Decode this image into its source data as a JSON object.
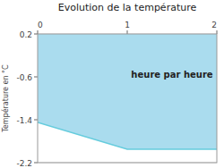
{
  "chart_data": {
    "type": "area",
    "title": "Evolution de la température",
    "y_label": "Température en °C",
    "x": [
      0,
      1.0,
      2.0
    ],
    "series": [
      {
        "type": "area",
        "color": "#aadcee",
        "values": [
          -1.45,
          -1.95,
          -1.95
        ],
        "upper_values": [
          0.2,
          0.2,
          0.2
        ]
      },
      {
        "type": "line",
        "color": "#66ccdd",
        "values": [
          -1.45,
          -1.95,
          -1.95
        ]
      }
    ],
    "xlim": [
      0,
      2
    ],
    "xticks": [
      0,
      1,
      2
    ],
    "ylim": [
      -2.2,
      0.2
    ],
    "yticks": [
      0.2,
      -0.6,
      -1.4,
      -2.2
    ],
    "grid": true,
    "annotations": [
      {
        "text": "heure par heure",
        "x": 1.5,
        "y": -0.55
      }
    ]
  }
}
